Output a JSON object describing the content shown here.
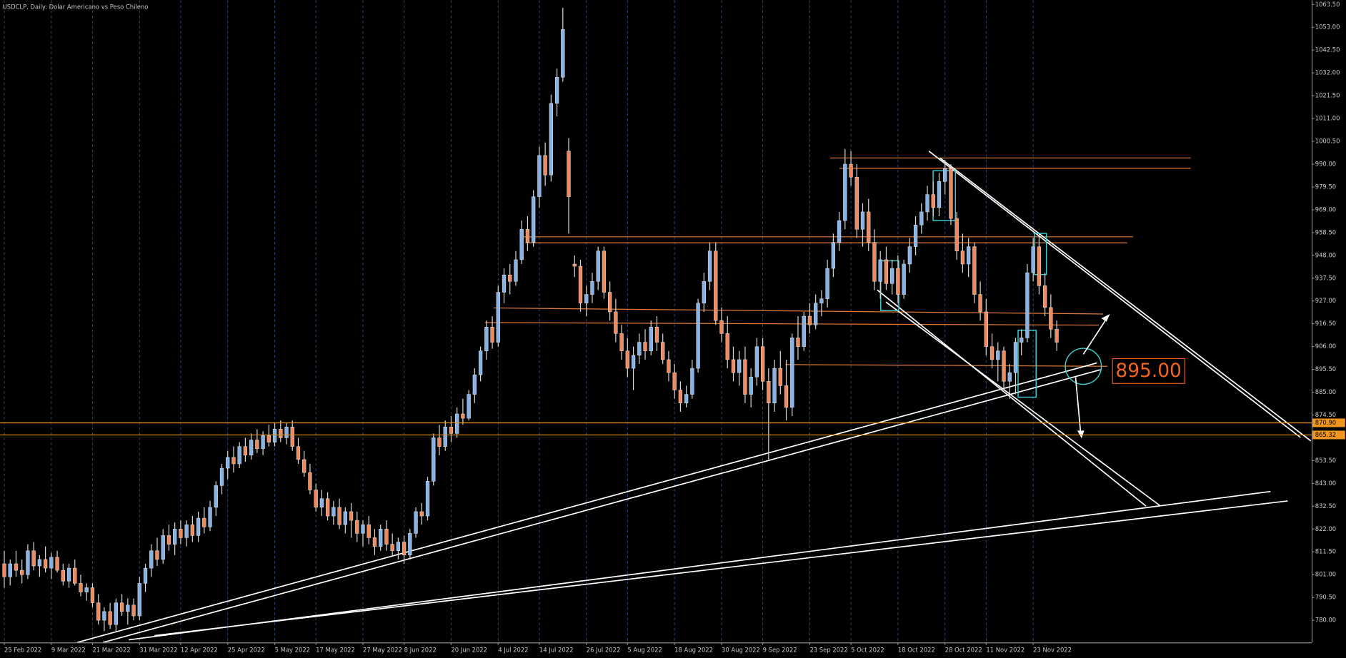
{
  "chart_data": {
    "type": "candlestick",
    "title": "USDCLP, Daily:  Dolar Americano vs Peso Chileno",
    "up_color": "#86b2e6",
    "down_color": "#f08a5d",
    "grid": true,
    "x": [
      "25 Feb 2022",
      null,
      null,
      null,
      null,
      null,
      null,
      null,
      "9 Mar 2022",
      null,
      null,
      null,
      null,
      null,
      null,
      "21 Mar 2022",
      null,
      null,
      null,
      null,
      null,
      null,
      null,
      "31 Mar 2022",
      null,
      null,
      null,
      null,
      null,
      null,
      "12 Apr 2022",
      null,
      null,
      null,
      null,
      null,
      null,
      null,
      "25 Apr 2022",
      null,
      null,
      null,
      null,
      null,
      null,
      null,
      "5 May 2022",
      null,
      null,
      null,
      null,
      null,
      null,
      "17 May 2022",
      null,
      null,
      null,
      null,
      null,
      null,
      null,
      "27 May 2022",
      null,
      null,
      null,
      null,
      null,
      null,
      "8 Jun 2022",
      null,
      null,
      null,
      null,
      null,
      null,
      null,
      "20 Jun 2022",
      null,
      null,
      null,
      null,
      null,
      null,
      null,
      "4 Jul 2022",
      null,
      null,
      null,
      null,
      null,
      null,
      "14 Jul 2022",
      null,
      null,
      null,
      null,
      null,
      null,
      null,
      "26 Jul 2022",
      null,
      null,
      null,
      null,
      null,
      null,
      "5 Aug 2022",
      null,
      null,
      null,
      null,
      null,
      null,
      null,
      "18 Aug 2022",
      null,
      null,
      null,
      null,
      null,
      null,
      null,
      "30 Aug 2022",
      null,
      null,
      null,
      null,
      null,
      null,
      "9 Sep 2022",
      null,
      null,
      null,
      null,
      null,
      null,
      null,
      "23 Sep 2022",
      null,
      null,
      null,
      null,
      null,
      null,
      "5 Oct 2022",
      null,
      null,
      null,
      null,
      null,
      null,
      null,
      "18 Oct 2022",
      null,
      null,
      null,
      null,
      null,
      null,
      null,
      "28 Oct 2022",
      null,
      null,
      null,
      null,
      null,
      null,
      "11 Nov 2022",
      null,
      null,
      null,
      null,
      null,
      null,
      null,
      "23 Nov 2022",
      null,
      null,
      null,
      null
    ],
    "candles": [
      [
        806,
        812,
        795,
        800
      ],
      [
        800,
        808,
        796,
        806
      ],
      [
        806,
        812,
        800,
        803
      ],
      [
        803,
        808,
        797,
        801
      ],
      [
        801,
        815,
        799,
        812
      ],
      [
        812,
        816,
        803,
        805
      ],
      [
        805,
        810,
        800,
        808
      ],
      [
        808,
        814,
        802,
        804
      ],
      [
        804,
        811,
        799,
        809
      ],
      [
        809,
        812,
        802,
        803
      ],
      [
        803,
        806,
        796,
        798
      ],
      [
        798,
        806,
        795,
        804
      ],
      [
        804,
        808,
        796,
        797
      ],
      [
        797,
        801,
        791,
        793
      ],
      [
        793,
        797,
        789,
        795
      ],
      [
        795,
        797,
        786,
        788
      ],
      [
        788,
        792,
        778,
        780
      ],
      [
        780,
        786,
        775,
        784
      ],
      [
        784,
        788,
        776,
        778
      ],
      [
        778,
        790,
        775,
        788
      ],
      [
        788,
        792,
        782,
        784
      ],
      [
        784,
        790,
        778,
        787
      ],
      [
        787,
        790,
        780,
        782
      ],
      [
        782,
        800,
        780,
        797
      ],
      [
        797,
        806,
        793,
        804
      ],
      [
        804,
        815,
        800,
        812
      ],
      [
        812,
        818,
        805,
        808
      ],
      [
        808,
        822,
        806,
        819
      ],
      [
        819,
        824,
        812,
        815
      ],
      [
        815,
        825,
        810,
        822
      ],
      [
        822,
        826,
        815,
        818
      ],
      [
        818,
        826,
        814,
        824
      ],
      [
        824,
        828,
        816,
        819
      ],
      [
        819,
        830,
        816,
        827
      ],
      [
        827,
        832,
        820,
        823
      ],
      [
        823,
        835,
        821,
        832
      ],
      [
        832,
        844,
        828,
        842
      ],
      [
        842,
        852,
        838,
        850
      ],
      [
        850,
        858,
        845,
        855
      ],
      [
        855,
        860,
        848,
        852
      ],
      [
        852,
        862,
        850,
        860
      ],
      [
        860,
        864,
        853,
        856
      ],
      [
        856,
        866,
        854,
        863
      ],
      [
        863,
        868,
        857,
        859
      ],
      [
        859,
        867,
        856,
        865
      ],
      [
        865,
        870,
        860,
        862
      ],
      [
        862,
        871,
        860,
        868
      ],
      [
        868,
        872,
        862,
        864
      ],
      [
        864,
        871,
        861,
        869
      ],
      [
        869,
        872,
        858,
        860
      ],
      [
        860,
        864,
        852,
        854
      ],
      [
        854,
        858,
        846,
        848
      ],
      [
        848,
        852,
        838,
        840
      ],
      [
        840,
        843,
        830,
        832
      ],
      [
        832,
        840,
        828,
        836
      ],
      [
        836,
        839,
        826,
        828
      ],
      [
        828,
        835,
        824,
        832
      ],
      [
        832,
        836,
        822,
        824
      ],
      [
        824,
        832,
        820,
        830
      ],
      [
        830,
        834,
        818,
        826
      ],
      [
        826,
        830,
        816,
        820
      ],
      [
        820,
        826,
        814,
        824
      ],
      [
        824,
        828,
        815,
        818
      ],
      [
        818,
        822,
        810,
        814
      ],
      [
        814,
        824,
        812,
        822
      ],
      [
        822,
        826,
        812,
        815
      ],
      [
        815,
        820,
        810,
        812
      ],
      [
        812,
        818,
        808,
        816
      ],
      [
        816,
        819,
        806,
        810
      ],
      [
        810,
        822,
        808,
        820
      ],
      [
        820,
        832,
        818,
        830
      ],
      [
        830,
        834,
        824,
        828
      ],
      [
        828,
        846,
        826,
        844
      ],
      [
        844,
        866,
        842,
        864
      ],
      [
        864,
        870,
        856,
        860
      ],
      [
        860,
        872,
        858,
        869
      ],
      [
        869,
        874,
        862,
        866
      ],
      [
        866,
        878,
        864,
        875
      ],
      [
        875,
        882,
        870,
        873
      ],
      [
        873,
        886,
        872,
        884
      ],
      [
        884,
        896,
        880,
        893
      ],
      [
        893,
        906,
        890,
        904
      ],
      [
        904,
        918,
        900,
        915
      ],
      [
        915,
        920,
        905,
        908
      ],
      [
        908,
        934,
        906,
        931
      ],
      [
        931,
        942,
        926,
        939
      ],
      [
        939,
        944,
        930,
        936
      ],
      [
        936,
        950,
        934,
        946
      ],
      [
        946,
        964,
        944,
        960
      ],
      [
        960,
        966,
        950,
        954
      ],
      [
        954,
        978,
        952,
        975
      ],
      [
        975,
        998,
        970,
        994
      ],
      [
        994,
        1000,
        980,
        985
      ],
      [
        985,
        1022,
        982,
        1018
      ],
      [
        1018,
        1034,
        1012,
        1030
      ],
      [
        1030,
        1062,
        1028,
        1052
      ],
      [
        996,
        1002,
        958,
        975
      ],
      [
        944,
        948,
        938,
        943
      ],
      [
        943,
        946,
        922,
        926
      ],
      [
        926,
        934,
        920,
        930
      ],
      [
        930,
        940,
        926,
        936
      ],
      [
        936,
        952,
        932,
        950
      ],
      [
        950,
        952,
        928,
        931
      ],
      [
        931,
        936,
        918,
        922
      ],
      [
        922,
        928,
        908,
        912
      ],
      [
        912,
        916,
        900,
        904
      ],
      [
        904,
        910,
        892,
        896
      ],
      [
        896,
        906,
        886,
        902
      ],
      [
        902,
        912,
        898,
        908
      ],
      [
        908,
        914,
        900,
        904
      ],
      [
        904,
        918,
        902,
        915
      ],
      [
        915,
        920,
        904,
        908
      ],
      [
        908,
        912,
        898,
        900
      ],
      [
        900,
        904,
        890,
        894
      ],
      [
        894,
        898,
        882,
        886
      ],
      [
        886,
        890,
        876,
        880
      ],
      [
        880,
        888,
        878,
        884
      ],
      [
        884,
        900,
        882,
        896
      ],
      [
        896,
        928,
        894,
        926
      ],
      [
        926,
        940,
        922,
        936
      ],
      [
        936,
        954,
        932,
        950
      ],
      [
        950,
        954,
        916,
        918
      ],
      [
        918,
        924,
        908,
        912
      ],
      [
        912,
        920,
        896,
        900
      ],
      [
        900,
        906,
        890,
        894
      ],
      [
        894,
        904,
        888,
        900
      ],
      [
        900,
        906,
        880,
        884
      ],
      [
        884,
        896,
        878,
        892
      ],
      [
        892,
        910,
        888,
        906
      ],
      [
        906,
        910,
        886,
        890
      ],
      [
        890,
        896,
        854,
        880
      ],
      [
        880,
        900,
        876,
        896
      ],
      [
        896,
        904,
        884,
        888
      ],
      [
        888,
        900,
        872,
        878
      ],
      [
        878,
        912,
        874,
        910
      ],
      [
        910,
        920,
        900,
        906
      ],
      [
        906,
        922,
        904,
        920
      ],
      [
        920,
        926,
        912,
        916
      ],
      [
        916,
        930,
        914,
        926
      ],
      [
        926,
        932,
        920,
        928
      ],
      [
        928,
        946,
        924,
        942
      ],
      [
        942,
        958,
        938,
        954
      ],
      [
        954,
        968,
        950,
        964
      ],
      [
        964,
        997,
        960,
        990
      ],
      [
        990,
        996,
        980,
        984
      ],
      [
        984,
        990,
        956,
        960
      ],
      [
        960,
        972,
        952,
        968
      ],
      [
        968,
        974,
        950,
        954
      ],
      [
        954,
        960,
        932,
        936
      ],
      [
        936,
        950,
        928,
        946
      ],
      [
        946,
        952,
        932,
        935
      ],
      [
        935,
        946,
        930,
        942
      ],
      [
        942,
        948,
        926,
        930
      ],
      [
        930,
        946,
        928,
        944
      ],
      [
        944,
        956,
        940,
        952
      ],
      [
        952,
        966,
        948,
        962
      ],
      [
        962,
        972,
        958,
        968
      ],
      [
        968,
        980,
        964,
        976
      ],
      [
        976,
        982,
        966,
        970
      ],
      [
        970,
        986,
        966,
        982
      ],
      [
        982,
        992,
        976,
        988
      ],
      [
        988,
        990,
        962,
        965
      ],
      [
        965,
        968,
        946,
        950
      ],
      [
        950,
        958,
        940,
        944
      ],
      [
        944,
        956,
        938,
        952
      ],
      [
        952,
        954,
        926,
        930
      ],
      [
        930,
        936,
        918,
        922
      ],
      [
        922,
        928,
        902,
        906
      ],
      [
        906,
        912,
        896,
        900
      ],
      [
        900,
        908,
        890,
        904
      ],
      [
        904,
        906,
        886,
        890
      ],
      [
        890,
        898,
        882,
        894
      ],
      [
        894,
        910,
        884,
        908
      ],
      [
        908,
        914,
        902,
        910
      ],
      [
        910,
        944,
        908,
        940
      ],
      [
        940,
        956,
        936,
        952
      ],
      [
        952,
        958,
        930,
        934
      ],
      [
        934,
        940,
        920,
        924
      ],
      [
        924,
        930,
        910,
        914
      ],
      [
        914,
        918,
        904,
        908
      ]
    ],
    "ylim": [
      769.8,
      1065.5
    ],
    "yticks": [
      {
        "value": 1063.5,
        "label": "1063.50"
      },
      {
        "value": 1053,
        "label": "1053.00"
      },
      {
        "value": 1042.5,
        "label": "1042.50"
      },
      {
        "value": 1032,
        "label": "1032.00"
      },
      {
        "value": 1021.5,
        "label": "1021.50"
      },
      {
        "value": 1011,
        "label": "1011.00"
      },
      {
        "value": 1000.5,
        "label": "1000.50"
      },
      {
        "value": 990,
        "label": "990.00"
      },
      {
        "value": 979.5,
        "label": "979.50"
      },
      {
        "value": 969,
        "label": "969.00"
      },
      {
        "value": 958.5,
        "label": "958.50"
      },
      {
        "value": 948,
        "label": "948.00"
      },
      {
        "value": 937.5,
        "label": "937.50"
      },
      {
        "value": 927,
        "label": "927.00"
      },
      {
        "value": 916.5,
        "label": "916.50"
      },
      {
        "value": 906,
        "label": "906.00"
      },
      {
        "value": 895.5,
        "label": "895.50"
      },
      {
        "value": 885,
        "label": "885.00"
      },
      {
        "value": 874.5,
        "label": "874.50"
      },
      {
        "value": 853.5,
        "label": "853.50"
      },
      {
        "value": 843,
        "label": "843.00"
      },
      {
        "value": 832.5,
        "label": "832.50"
      },
      {
        "value": 822,
        "label": "822.00"
      },
      {
        "value": 811.5,
        "label": "811.50"
      },
      {
        "value": 801,
        "label": "801.00"
      },
      {
        "value": 790.5,
        "label": "790.50"
      },
      {
        "value": 780,
        "label": "780.00"
      }
    ],
    "price_lines": [
      {
        "value": 870.9,
        "label": "870.90",
        "color": "#f0951e"
      },
      {
        "value": 865.32,
        "label": "865.32",
        "color": "#f0951e"
      }
    ],
    "annotation": "895.00"
  }
}
